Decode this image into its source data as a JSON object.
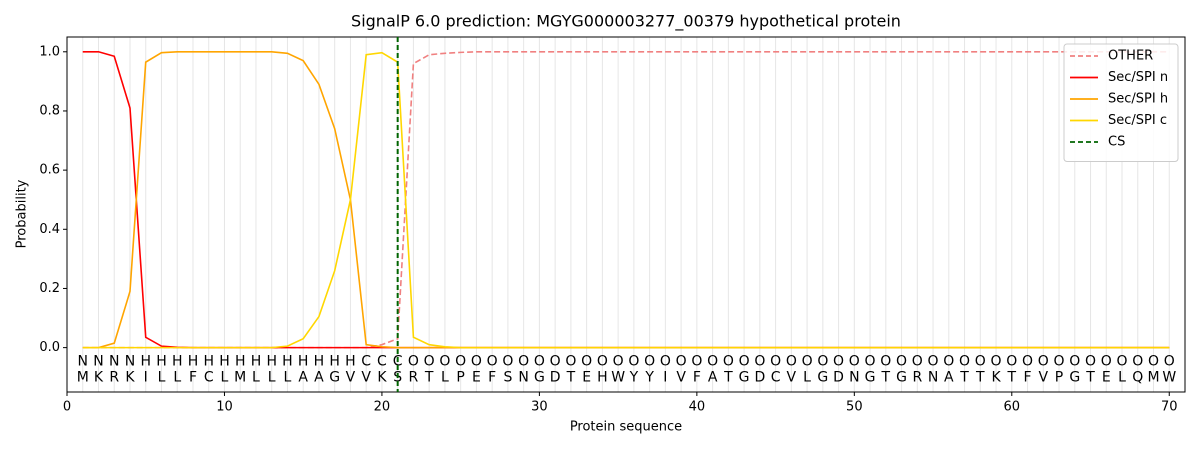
{
  "chart_data": {
    "type": "line",
    "title": "SignalP 6.0 prediction: MGYG000003277_00379 hypothetical protein",
    "xlabel": "Protein sequence",
    "ylabel": "Probability",
    "xlim": [
      0,
      71
    ],
    "ylim": [
      -0.15,
      1.05
    ],
    "xticks": [
      0,
      10,
      20,
      30,
      40,
      50,
      60,
      70
    ],
    "yticks": [
      {
        "value": 0,
        "label": "0.0"
      },
      {
        "value": 0.2,
        "label": "0.2"
      },
      {
        "value": 0.4,
        "label": "0.4"
      },
      {
        "value": 0.6,
        "label": "0.6"
      },
      {
        "value": 0.8,
        "label": "0.8"
      },
      {
        "value": 1,
        "label": "1.0"
      }
    ],
    "grid": true,
    "legend": "upper right",
    "x": [
      1,
      2,
      3,
      4,
      5,
      6,
      7,
      8,
      9,
      10,
      11,
      12,
      13,
      14,
      15,
      16,
      17,
      18,
      19,
      20,
      21,
      22,
      23,
      24,
      25,
      26,
      27,
      28,
      29,
      30,
      31,
      32,
      33,
      34,
      35,
      36,
      37,
      38,
      39,
      40,
      41,
      42,
      43,
      44,
      45,
      46,
      47,
      48,
      49,
      50,
      51,
      52,
      53,
      54,
      55,
      56,
      57,
      58,
      59,
      60,
      61,
      62,
      63,
      64,
      65,
      66,
      67,
      68,
      69,
      70
    ],
    "series": [
      {
        "name": "OTHER",
        "color": "#f08080",
        "linestyle": "dashed",
        "values": [
          0,
          0,
          0,
          0,
          0,
          0,
          0,
          0,
          0,
          0,
          0,
          0,
          0,
          0,
          0,
          0,
          0,
          0,
          0,
          0.01,
          0.03,
          0.96,
          0.99,
          0.995,
          0.998,
          1,
          1,
          1,
          1,
          1,
          1,
          1,
          1,
          1,
          1,
          1,
          1,
          1,
          1,
          1,
          1,
          1,
          1,
          1,
          1,
          1,
          1,
          1,
          1,
          1,
          1,
          1,
          1,
          1,
          1,
          1,
          1,
          1,
          1,
          1,
          1,
          1,
          1,
          1,
          1,
          1,
          1,
          1,
          1,
          1
        ]
      },
      {
        "name": "Sec/SPI n",
        "color": "#ff0000",
        "linestyle": "solid",
        "values": [
          1,
          1,
          0.985,
          0.81,
          0.035,
          0.005,
          0.001,
          0,
          0,
          0,
          0,
          0,
          0,
          0,
          0,
          0,
          0,
          0,
          0,
          0,
          0,
          0,
          0,
          0,
          0,
          0,
          0,
          0,
          0,
          0,
          0,
          0,
          0,
          0,
          0,
          0,
          0,
          0,
          0,
          0,
          0,
          0,
          0,
          0,
          0,
          0,
          0,
          0,
          0,
          0,
          0,
          0,
          0,
          0,
          0,
          0,
          0,
          0,
          0,
          0,
          0,
          0,
          0,
          0,
          0,
          0,
          0,
          0,
          0,
          0
        ]
      },
      {
        "name": "Sec/SPI h",
        "color": "#ffa500",
        "linestyle": "solid",
        "values": [
          0,
          0,
          0.015,
          0.19,
          0.965,
          0.997,
          1,
          1,
          1,
          1,
          1,
          1,
          1,
          0.995,
          0.97,
          0.89,
          0.74,
          0.5,
          0.01,
          0.003,
          0,
          0,
          0,
          0,
          0,
          0,
          0,
          0,
          0,
          0,
          0,
          0,
          0,
          0,
          0,
          0,
          0,
          0,
          0,
          0,
          0,
          0,
          0,
          0,
          0,
          0,
          0,
          0,
          0,
          0,
          0,
          0,
          0,
          0,
          0,
          0,
          0,
          0,
          0,
          0,
          0,
          0,
          0,
          0,
          0,
          0,
          0,
          0,
          0,
          0
        ]
      },
      {
        "name": "Sec/SPI c",
        "color": "#ffd700",
        "linestyle": "solid",
        "values": [
          0,
          0,
          0,
          0,
          0,
          0,
          0,
          0,
          0,
          0,
          0,
          0,
          0,
          0.005,
          0.03,
          0.105,
          0.26,
          0.5,
          0.99,
          0.997,
          0.965,
          0.035,
          0.01,
          0.003,
          0,
          0,
          0,
          0,
          0,
          0,
          0,
          0,
          0,
          0,
          0,
          0,
          0,
          0,
          0,
          0,
          0,
          0,
          0,
          0,
          0,
          0,
          0,
          0,
          0,
          0,
          0,
          0,
          0,
          0,
          0,
          0,
          0,
          0,
          0,
          0,
          0,
          0,
          0,
          0,
          0,
          0,
          0,
          0,
          0,
          0
        ]
      }
    ],
    "cs": {
      "name": "CS",
      "x": 21,
      "color": "#006400"
    },
    "label_colors": {
      "N": "#ff0000",
      "H": "#ffa500",
      "C": "#ffd700",
      "O": "#808080"
    },
    "predicted_labels": [
      "N",
      "N",
      "N",
      "N",
      "H",
      "H",
      "H",
      "H",
      "H",
      "H",
      "H",
      "H",
      "H",
      "H",
      "H",
      "H",
      "H",
      "H",
      "C",
      "C",
      "C",
      "O",
      "O",
      "O",
      "O",
      "O",
      "O",
      "O",
      "O",
      "O",
      "O",
      "O",
      "O",
      "O",
      "O",
      "O",
      "O",
      "O",
      "O",
      "O",
      "O",
      "O",
      "O",
      "O",
      "O",
      "O",
      "O",
      "O",
      "O",
      "O",
      "O",
      "O",
      "O",
      "O",
      "O",
      "O",
      "O",
      "O",
      "O",
      "O",
      "O",
      "O",
      "O",
      "O",
      "O",
      "O",
      "O",
      "O",
      "O",
      "O"
    ],
    "sequence": [
      "M",
      "K",
      "R",
      "K",
      "I",
      "L",
      "L",
      "F",
      "C",
      "L",
      "M",
      "L",
      "L",
      "L",
      "A",
      "A",
      "G",
      "V",
      "V",
      "K",
      "S",
      "R",
      "T",
      "L",
      "P",
      "E",
      "F",
      "S",
      "N",
      "G",
      "D",
      "T",
      "E",
      "H",
      "W",
      "Y",
      "Y",
      "I",
      "V",
      "F",
      "A",
      "T",
      "G",
      "D",
      "C",
      "V",
      "L",
      "G",
      "D",
      "N",
      "G",
      "T",
      "G",
      "R",
      "N",
      "A",
      "T",
      "T",
      "K",
      "T",
      "F",
      "V",
      "P",
      "G",
      "T",
      "E",
      "L",
      "Q",
      "M",
      "W"
    ]
  }
}
